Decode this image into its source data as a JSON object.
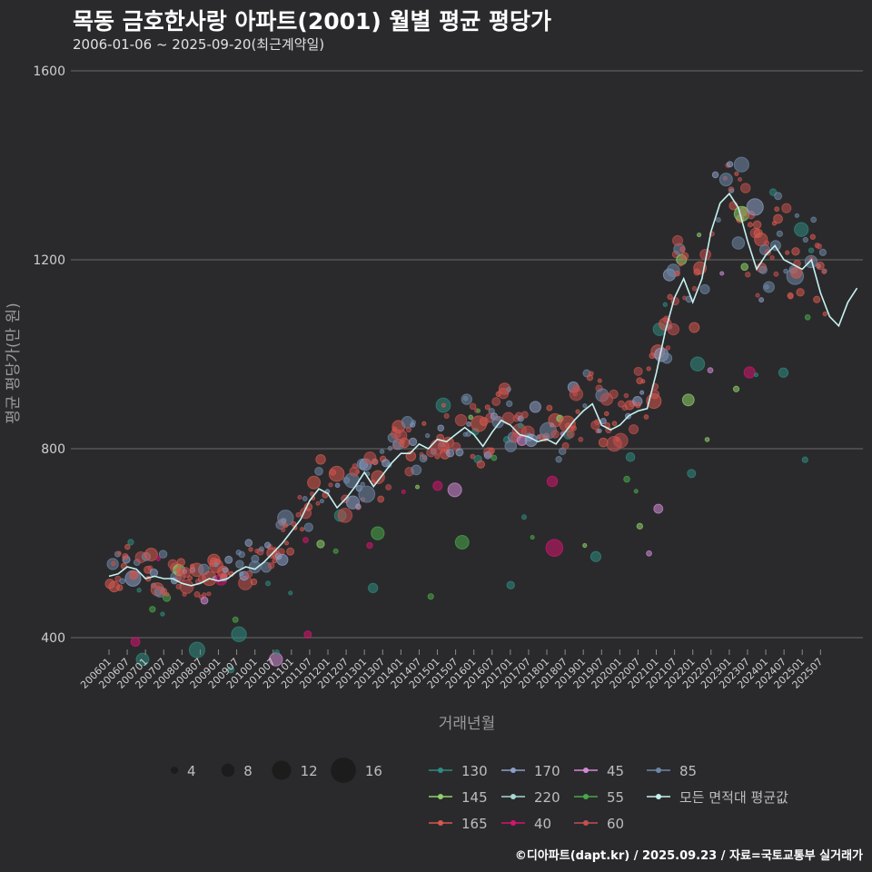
{
  "title": "목동 금호한사랑 아파트(2001) 월별 평균 평당가",
  "subtitle": "2006-01-06 ~ 2025-09-20(최근계약일)",
  "footer": "©디아파트(dapt.kr) / 2025.09.23 / 자료=국토교통부 실거래가",
  "chart_data": {
    "type": "scatter",
    "xlabel": "거래년월",
    "ylabel": "평균 평당가(만 원)",
    "ylim": [
      350,
      1610
    ],
    "yticks": [
      400,
      800,
      1200,
      1600
    ],
    "grid": true,
    "x_tick_labels": [
      "200601",
      "200607",
      "200701",
      "200707",
      "200801",
      "200807",
      "200901",
      "200907",
      "201001",
      "201007",
      "201101",
      "201107",
      "201201",
      "201207",
      "201301",
      "201307",
      "201401",
      "201407",
      "201501",
      "201507",
      "201601",
      "201607",
      "201701",
      "201707",
      "201801",
      "201807",
      "201901",
      "201907",
      "202001",
      "202007",
      "202101",
      "202107",
      "202201",
      "202207",
      "202301",
      "202307",
      "202401",
      "202407",
      "202501",
      "202507"
    ],
    "size_legend": [
      4,
      8,
      12,
      16
    ],
    "area_series": [
      {
        "name": "130",
        "color": "#2e8b80"
      },
      {
        "name": "145",
        "color": "#8fd16a"
      },
      {
        "name": "165",
        "color": "#d6584f"
      },
      {
        "name": "170",
        "color": "#8d9ec7"
      },
      {
        "name": "220",
        "color": "#a7d8d5"
      },
      {
        "name": "40",
        "color": "#d4146f"
      },
      {
        "name": "45",
        "color": "#d18ad6"
      },
      {
        "name": "55",
        "color": "#48a84a"
      },
      {
        "name": "60",
        "color": "#c2504f"
      },
      {
        "name": "85",
        "color": "#6d87a6"
      },
      {
        "name": "모든 면적대 평균값",
        "color": "#c6f2f0"
      }
    ],
    "average_series": {
      "name": "모든 면적대 평균값",
      "start": "2006-01",
      "step_months": 3,
      "values": [
        530,
        535,
        550,
        545,
        525,
        530,
        525,
        525,
        515,
        510,
        515,
        525,
        520,
        525,
        540,
        550,
        545,
        560,
        580,
        600,
        625,
        650,
        690,
        715,
        705,
        675,
        695,
        720,
        750,
        720,
        745,
        770,
        790,
        790,
        810,
        800,
        820,
        815,
        830,
        845,
        830,
        805,
        835,
        860,
        850,
        830,
        825,
        815,
        820,
        810,
        835,
        860,
        880,
        895,
        850,
        840,
        850,
        870,
        880,
        885,
        960,
        1050,
        1120,
        1160,
        1110,
        1160,
        1260,
        1320,
        1340,
        1310,
        1240,
        1180,
        1210,
        1230,
        1200,
        1190,
        1180,
        1200,
        1130,
        1080,
        1060,
        1110,
        1140
      ]
    },
    "scatter_points": []
  }
}
